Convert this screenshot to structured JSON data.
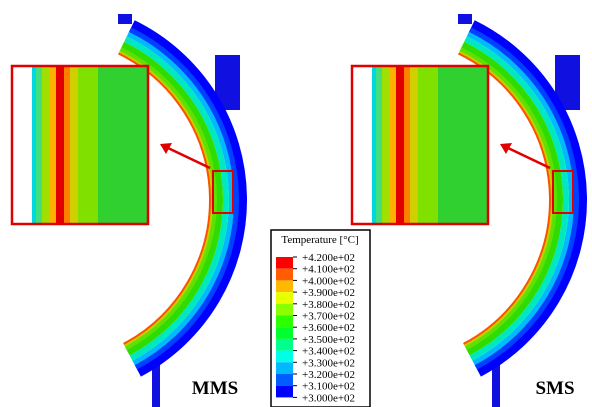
{
  "panels": [
    {
      "label": "MMS"
    },
    {
      "label": "SMS"
    }
  ],
  "legend": {
    "title": "Temperature [°C]",
    "labels": [
      "+4.200e+02",
      "+4.100e+02",
      "+4.000e+02",
      "+3.900e+02",
      "+3.800e+02",
      "+3.700e+02",
      "+3.600e+02",
      "+3.500e+02",
      "+3.400e+02",
      "+3.300e+02",
      "+3.200e+02",
      "+3.100e+02",
      "+3.000e+02"
    ],
    "colors": [
      "#ff0000",
      "#ff5d00",
      "#ffb900",
      "#e8ff00",
      "#8bff00",
      "#2eff00",
      "#00ff2e",
      "#00ff8b",
      "#00ffe8",
      "#00b9ff",
      "#005dff",
      "#0000ff"
    ]
  }
}
